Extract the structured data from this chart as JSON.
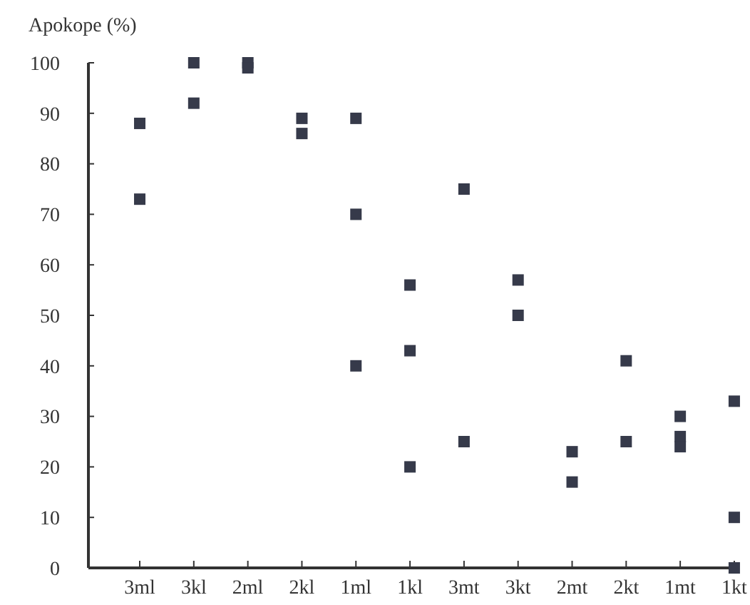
{
  "chart_data": {
    "type": "scatter",
    "ylabel": "Apokope (%)",
    "categories": [
      "3ml",
      "3kl",
      "2ml",
      "2kl",
      "1ml",
      "1kl",
      "3mt",
      "3kt",
      "2mt",
      "2kt",
      "1mt",
      "1kt"
    ],
    "series": [
      {
        "color": "#363a4a",
        "x": [
          "3ml",
          "3ml",
          "3kl",
          "3kl",
          "2ml",
          "2ml",
          "2kl",
          "2kl",
          "1ml",
          "1ml",
          "1ml",
          "1kl",
          "1kl",
          "1kl",
          "3mt",
          "3mt",
          "3kt",
          "3kt",
          "2mt",
          "2mt",
          "2kt",
          "2kt",
          "1mt",
          "1mt",
          "1mt",
          "1kt",
          "1kt",
          "1kt"
        ],
        "values": [
          88,
          73,
          100,
          92,
          100,
          99,
          89,
          86,
          89,
          70,
          40,
          56,
          43,
          20,
          75,
          25,
          57,
          50,
          23,
          17,
          41,
          25,
          30,
          26,
          24,
          33,
          10,
          0
        ]
      }
    ],
    "ylim": [
      0,
      100
    ],
    "yticks": [
      0,
      10,
      20,
      30,
      40,
      50,
      60,
      70,
      80,
      90,
      100
    ],
    "marker": "square",
    "grid": false
  }
}
